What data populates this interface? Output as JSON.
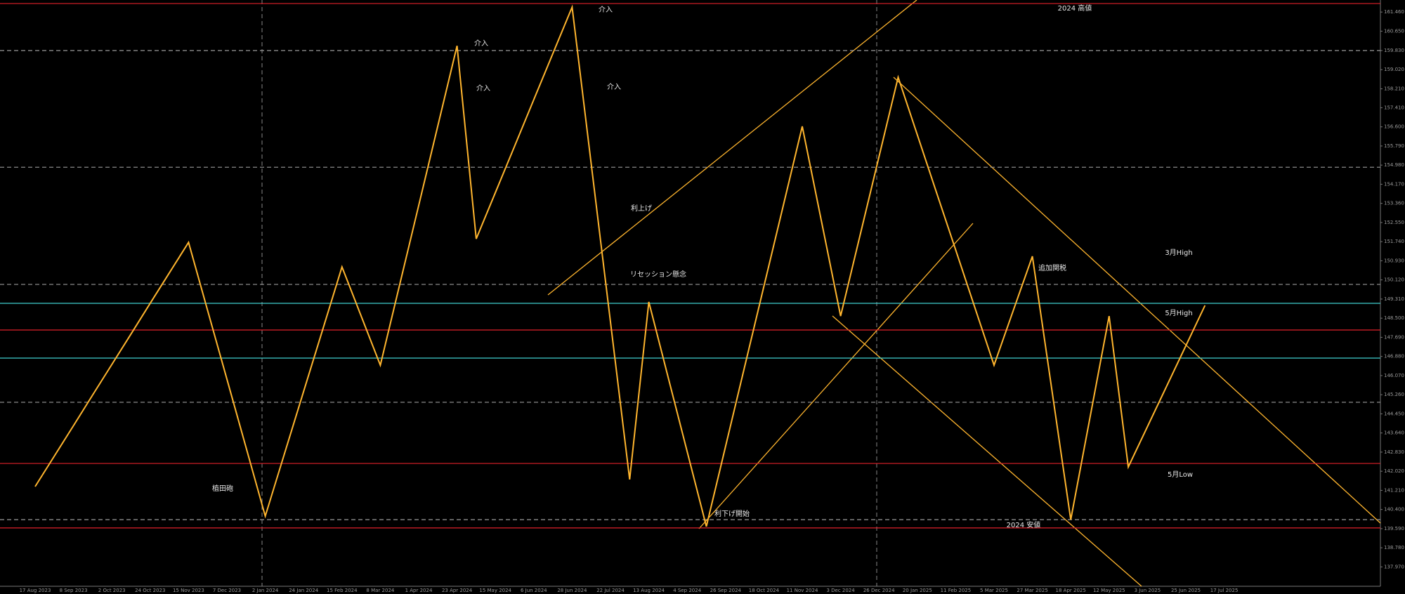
{
  "chart_data": {
    "type": "line",
    "categories": [
      "17 Aug 2023",
      null,
      "8 Sep 2023",
      null,
      "2 Oct 2023",
      null,
      "24 Oct 2023",
      null,
      "15 Nov 2023",
      null,
      "7 Dec 2023",
      null,
      "2 Jan 2024",
      null,
      "24 Jan 2024",
      null,
      "15 Feb 2024",
      null,
      "8 Mar 2024",
      null,
      "1 Apr 2024",
      null,
      "23 Apr 2024",
      null,
      "15 May 2024",
      null,
      "6 Jun 2024",
      null,
      "28 Jun 2024",
      null,
      "22 Jul 2024",
      null,
      "13 Aug 2024",
      null,
      "4 Sep 2024",
      null,
      "26 Sep 2024",
      null,
      "18 Oct 2024",
      null,
      "11 Nov 2024",
      null,
      "3 Dec 2024",
      null,
      "26 Dec 2024",
      null,
      "20 Jan 2025",
      null,
      "11 Feb 2025",
      null,
      "5 Mar 2025",
      null,
      "27 Mar 2025",
      null,
      "18 Apr 2025",
      null,
      "12 May 2025",
      null,
      "3 Jun 2025",
      null,
      "25 Jun 2025",
      null,
      "17 Jul 2025",
      null
    ],
    "series": [
      {
        "color": "#ffb52e",
        "values": [
          141.37,
          142.66,
          143.95,
          145.25,
          146.54,
          147.83,
          149.13,
          150.42,
          151.71,
          148.81,
          145.92,
          143.02,
          140.12,
          142.76,
          145.4,
          148.03,
          150.67,
          148.59,
          146.51,
          149.89,
          153.27,
          156.65,
          160.03,
          151.86,
          153.82,
          155.78,
          157.75,
          159.71,
          161.67,
          155.0,
          148.34,
          141.67,
          149.19,
          146.02,
          142.85,
          139.68,
          143.07,
          146.46,
          149.85,
          153.23,
          156.62,
          152.61,
          148.59,
          151.96,
          155.33,
          158.7,
          156.26,
          153.82,
          151.39,
          148.95,
          146.51,
          148.82,
          151.12,
          145.55,
          139.97,
          144.28,
          148.59,
          142.2,
          143.91,
          145.62,
          147.33,
          149.04,
          null,
          null
        ]
      }
    ],
    "ylim": [
      137.15,
      161.97
    ],
    "yticks": [
      {
        "value": 161.46,
        "label": "161.460"
      },
      {
        "value": 160.65,
        "label": "160.650"
      },
      {
        "value": 159.83,
        "label": "159.830"
      },
      {
        "value": 159.02,
        "label": "159.020"
      },
      {
        "value": 158.21,
        "label": "158.210"
      },
      {
        "value": 157.41,
        "label": "157.410"
      },
      {
        "value": 156.6,
        "label": "156.600"
      },
      {
        "value": 155.79,
        "label": "155.790"
      },
      {
        "value": 154.98,
        "label": "154.980"
      },
      {
        "value": 154.17,
        "label": "154.170"
      },
      {
        "value": 153.36,
        "label": "153.360"
      },
      {
        "value": 152.55,
        "label": "152.550"
      },
      {
        "value": 151.74,
        "label": "151.740"
      },
      {
        "value": 150.93,
        "label": "150.930"
      },
      {
        "value": 150.12,
        "label": "150.120"
      },
      {
        "value": 149.31,
        "label": "149.310"
      },
      {
        "value": 148.5,
        "label": "148.500"
      },
      {
        "value": 147.69,
        "label": "147.690"
      },
      {
        "value": 146.88,
        "label": "146.880"
      },
      {
        "value": 146.07,
        "label": "146.070"
      },
      {
        "value": 145.26,
        "label": "145.260"
      },
      {
        "value": 144.45,
        "label": "144.450"
      },
      {
        "value": 143.64,
        "label": "143.640"
      },
      {
        "value": 142.83,
        "label": "142.830"
      },
      {
        "value": 142.02,
        "label": "142.020"
      },
      {
        "value": 141.21,
        "label": "141.210"
      },
      {
        "value": 140.4,
        "label": "140.400"
      },
      {
        "value": 139.59,
        "label": "139.590"
      },
      {
        "value": 138.78,
        "label": "138.780"
      },
      {
        "value": 137.97,
        "label": "137.970"
      }
    ],
    "hlines": [
      {
        "value": 161.82,
        "color": "#e0202a",
        "style": "solid"
      },
      {
        "value": 148.0,
        "color": "#e0202a",
        "style": "solid"
      },
      {
        "value": 142.35,
        "color": "#e0202a",
        "style": "solid"
      },
      {
        "value": 139.62,
        "color": "#e0202a",
        "style": "solid"
      },
      {
        "value": 149.13,
        "color": "#3fd0d0",
        "style": "solid"
      },
      {
        "value": 146.81,
        "color": "#3fd0d0",
        "style": "solid"
      },
      {
        "value": 159.83,
        "color": "#9a9a9a",
        "style": "dashed"
      },
      {
        "value": 154.89,
        "color": "#9a9a9a",
        "style": "dashed"
      },
      {
        "value": 149.93,
        "color": "#9a9a9a",
        "style": "dashed"
      },
      {
        "value": 144.94,
        "color": "#9a9a9a",
        "style": "dashed"
      },
      {
        "value": 139.97,
        "color": "#9a9a9a",
        "style": "dashed"
      }
    ],
    "annotations": [
      "2024 高値",
      "3月High",
      "5月High",
      "5月Low",
      "2024 安値",
      "介入",
      "介入",
      "介入",
      "介入",
      "利上げ",
      "リセッション懸念",
      "追加関税",
      "植田砲",
      "利下げ開始"
    ]
  }
}
